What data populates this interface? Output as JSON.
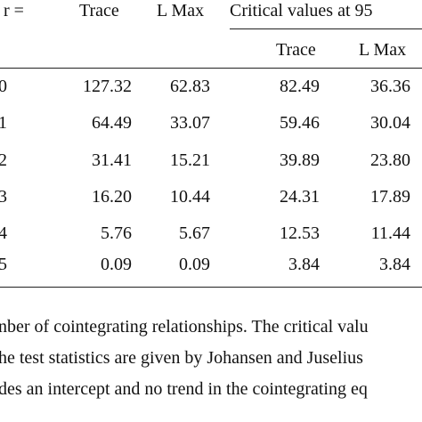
{
  "header": {
    "r_label": "r =",
    "cols": [
      "Trace",
      "L Max"
    ],
    "critical": "Critical values at 95",
    "subcols": [
      "Trace",
      "L Max"
    ]
  },
  "table": {
    "rows": [
      [
        "0",
        "127.32",
        "62.83",
        "82.49",
        "36.36"
      ],
      [
        "1",
        "64.49",
        "33.07",
        "59.46",
        "30.04"
      ],
      [
        "2",
        "31.41",
        "15.21",
        "39.89",
        "23.80"
      ],
      [
        "3",
        "16.20",
        "10.44",
        "24.31",
        "17.89"
      ],
      [
        "4",
        "5.76",
        "5.67",
        "12.53",
        "11.44"
      ],
      [
        "5",
        "0.09",
        "0.09",
        "3.84",
        "3.84"
      ]
    ]
  },
  "notes": [
    "nber of cointegrating relationships. The critical valu",
    "he test statistics are given by Johansen and Juselius",
    "des an intercept and no trend in the cointegrating eq"
  ]
}
